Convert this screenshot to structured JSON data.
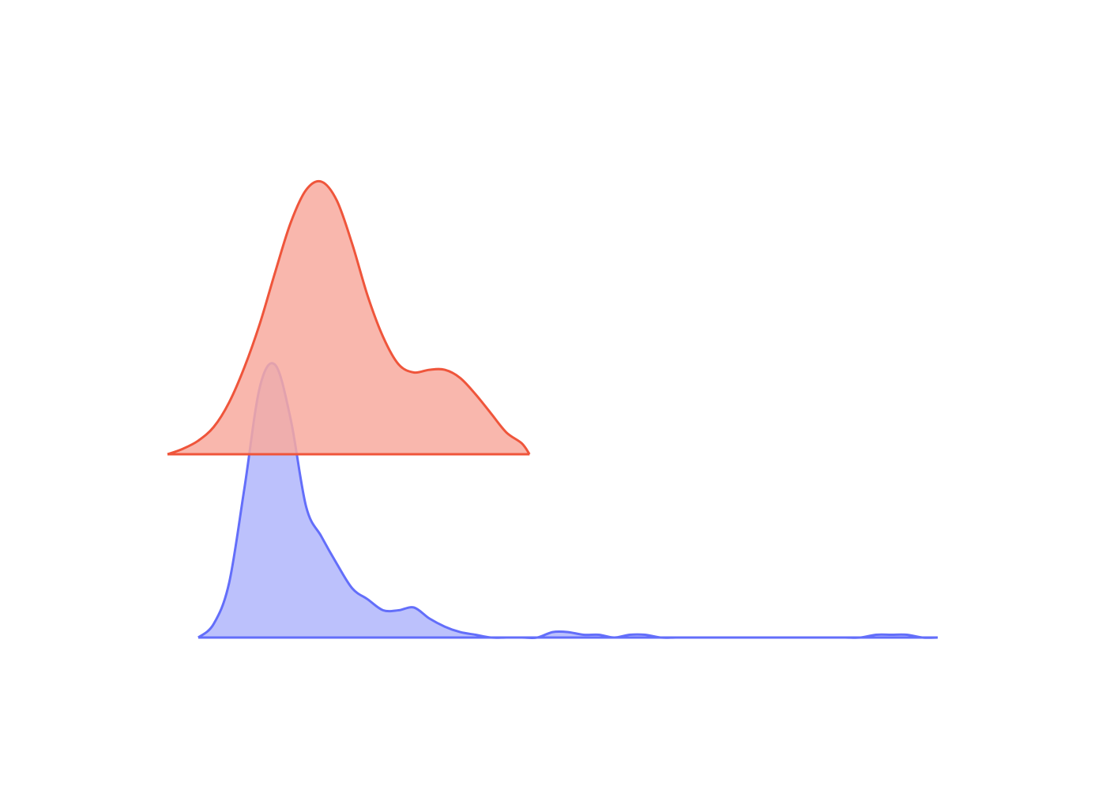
{
  "chart_data": {
    "type": "area",
    "title": "",
    "xlabel": "",
    "ylabel": "",
    "grid": false,
    "legend": "none",
    "xlim": [
      0,
      100
    ],
    "series": [
      {
        "color": "#ef553b",
        "fill": "#f8aa9f",
        "baseline": 1,
        "peak_height": 1,
        "x": [
          0,
          2,
          4,
          6,
          8,
          10,
          12,
          14,
          16,
          18,
          20,
          22,
          24,
          26,
          28,
          30,
          32,
          34,
          36,
          38,
          40,
          42,
          44,
          46,
          48,
          50,
          52,
          54,
          56,
          58,
          60,
          62,
          64,
          66,
          68,
          70,
          72,
          74,
          76,
          78,
          80,
          82,
          84,
          86,
          88,
          90,
          92,
          94,
          96,
          98,
          100
        ],
        "y": [
          0.0,
          0.02,
          0.05,
          0.1,
          0.19,
          0.32,
          0.48,
          0.67,
          0.85,
          0.97,
          1.0,
          0.93,
          0.77,
          0.58,
          0.43,
          0.33,
          0.3,
          0.31,
          0.31,
          0.28,
          0.22,
          0.15,
          0.08,
          0.04,
          0.01,
          0.0,
          0.0,
          0.0,
          0.0,
          0.0,
          0.0,
          0.0,
          0.0,
          0.0,
          0.0,
          0.0,
          0.0,
          0.0,
          0.0,
          0.0,
          0.0,
          0.0,
          0.0,
          0.0,
          0.0,
          0.0,
          0.0,
          0.0,
          0.0,
          0.0,
          0.0
        ],
        "x_end": 47
      },
      {
        "color": "#636efa",
        "fill": "#b0b6fb",
        "baseline": 0,
        "peak_height": 1,
        "x": [
          4,
          6,
          8,
          10,
          12,
          14,
          16,
          18,
          20,
          22,
          24,
          26,
          28,
          30,
          32,
          34,
          36,
          38,
          40,
          42,
          44,
          46,
          48,
          50,
          52,
          54,
          56,
          58,
          60,
          62,
          64,
          66,
          68,
          70,
          72,
          74,
          76,
          78,
          80,
          82,
          84,
          86,
          88,
          90,
          92,
          94,
          96,
          98,
          100
        ],
        "y": [
          0.0,
          0.05,
          0.2,
          0.55,
          0.92,
          1.0,
          0.8,
          0.48,
          0.37,
          0.27,
          0.18,
          0.14,
          0.1,
          0.1,
          0.11,
          0.07,
          0.04,
          0.02,
          0.01,
          0.0,
          0.0,
          0.0,
          0.0,
          0.02,
          0.02,
          0.01,
          0.01,
          0.0,
          0.01,
          0.01,
          0.0,
          0.0,
          0.0,
          0.0,
          0.0,
          0.0,
          0.0,
          0.0,
          0.0,
          0.0,
          0.0,
          0.0,
          0.0,
          0.0,
          0.01,
          0.01,
          0.01,
          0.0,
          0.0
        ]
      }
    ]
  }
}
